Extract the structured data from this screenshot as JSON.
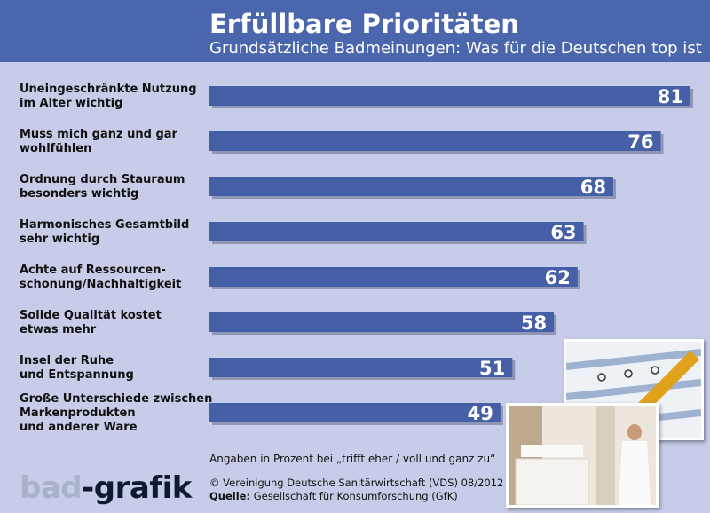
{
  "header": {
    "title": "Erfüllbare Prioritäten",
    "subtitle": "Grundsätzliche Badmeinungen: Was für die Deutschen top ist"
  },
  "colors": {
    "header_bg": "#4a66ac",
    "bar": "#4660a8",
    "background": "#c7cde9"
  },
  "chart_data": {
    "type": "bar",
    "orientation": "horizontal",
    "categories": [
      [
        "Uneingeschränkte Nutzung",
        "im Alter wichtig"
      ],
      [
        "Muss mich ganz und gar",
        "wohlfühlen"
      ],
      [
        "Ordnung durch Stauraum",
        "besonders wichtig"
      ],
      [
        "Harmonisches Gesamtbild",
        "sehr wichtig"
      ],
      [
        "Achte auf Ressourcen-",
        "schonung/Nachhaltigkeit"
      ],
      [
        "Solide Qualität kostet",
        "etwas mehr"
      ],
      [
        "Insel der Ruhe",
        "und Entspannung"
      ],
      [
        "Große Unterschiede zwischen",
        "Markenprodukten",
        "und anderer Ware"
      ]
    ],
    "values": [
      81,
      76,
      68,
      63,
      62,
      58,
      51,
      49
    ],
    "xlim": [
      0,
      81
    ],
    "grid": false,
    "data_labels": true
  },
  "footer": {
    "note": "Angaben in Prozent bei „trifft eher / voll und ganz zu“",
    "copyright": "© Vereinigung Deutsche Sanitärwirtschaft (VDS)  08/2012",
    "source_label": "Quelle:",
    "source_text": "Gesellschaft für Konsumforschung (GfK)",
    "logo_part1": "bad",
    "logo_part2": "-grafik"
  }
}
